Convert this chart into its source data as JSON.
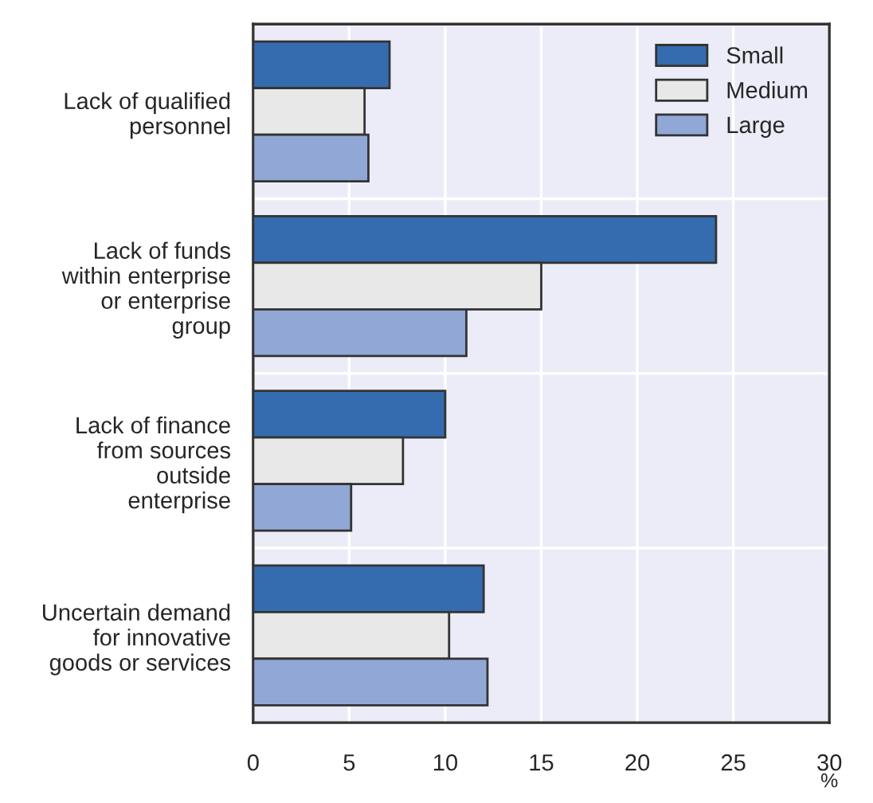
{
  "chart_data": {
    "type": "bar",
    "orientation": "horizontal",
    "categories": [
      "Lack of qualified\npersonnel",
      "Lack of funds\nwithin enterprise\nor enterprise\ngroup",
      "Lack of finance\nfrom sources\noutside\nenterprise",
      "Uncertain demand\nfor innovative\ngoods or services"
    ],
    "series": [
      {
        "name": "Small",
        "color": "#356cb0",
        "values": [
          7.1,
          24.1,
          10,
          12
        ]
      },
      {
        "name": "Medium",
        "color": "#e8e8e8",
        "values": [
          5.8,
          15,
          7.8,
          10.2
        ]
      },
      {
        "name": "Large",
        "color": "#91a7d6",
        "values": [
          6,
          11.1,
          5.1,
          12.2
        ]
      }
    ],
    "xlabel": "%",
    "xlim": [
      0,
      30
    ],
    "xticks": [
      0,
      5,
      10,
      15,
      20,
      25,
      30
    ],
    "grid": true,
    "legend": "top right"
  }
}
